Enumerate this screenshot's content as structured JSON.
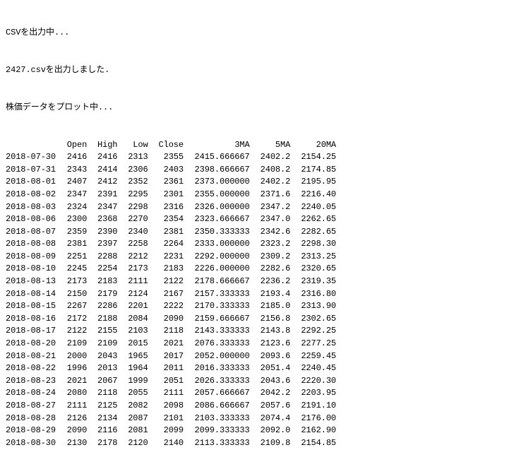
{
  "messages": [
    "CSVを出力中...",
    "2427.csvを出力しました.",
    "株価データをプロット中..."
  ],
  "table": {
    "columns": [
      "",
      "Open",
      "High",
      "Low",
      "Close",
      "3MA",
      "5MA",
      "20MA"
    ],
    "rows": [
      [
        "2018-07-30",
        "2416",
        "2416",
        "2313",
        "2355",
        "2415.666667",
        "2402.2",
        "2154.25"
      ],
      [
        "2018-07-31",
        "2343",
        "2414",
        "2306",
        "2403",
        "2398.666667",
        "2408.2",
        "2174.85"
      ],
      [
        "2018-08-01",
        "2407",
        "2412",
        "2352",
        "2361",
        "2373.000000",
        "2402.2",
        "2195.95"
      ],
      [
        "2018-08-02",
        "2347",
        "2391",
        "2295",
        "2301",
        "2355.000000",
        "2371.6",
        "2216.40"
      ],
      [
        "2018-08-03",
        "2324",
        "2347",
        "2298",
        "2316",
        "2326.000000",
        "2347.2",
        "2240.05"
      ],
      [
        "2018-08-06",
        "2300",
        "2368",
        "2270",
        "2354",
        "2323.666667",
        "2347.0",
        "2262.65"
      ],
      [
        "2018-08-07",
        "2359",
        "2390",
        "2340",
        "2381",
        "2350.333333",
        "2342.6",
        "2282.65"
      ],
      [
        "2018-08-08",
        "2381",
        "2397",
        "2258",
        "2264",
        "2333.000000",
        "2323.2",
        "2298.30"
      ],
      [
        "2018-08-09",
        "2251",
        "2288",
        "2212",
        "2231",
        "2292.000000",
        "2309.2",
        "2313.25"
      ],
      [
        "2018-08-10",
        "2245",
        "2254",
        "2173",
        "2183",
        "2226.000000",
        "2282.6",
        "2320.65"
      ],
      [
        "2018-08-13",
        "2173",
        "2183",
        "2111",
        "2122",
        "2178.666667",
        "2236.2",
        "2319.35"
      ],
      [
        "2018-08-14",
        "2150",
        "2179",
        "2124",
        "2167",
        "2157.333333",
        "2193.4",
        "2316.80"
      ],
      [
        "2018-08-15",
        "2267",
        "2286",
        "2201",
        "2222",
        "2170.333333",
        "2185.0",
        "2313.90"
      ],
      [
        "2018-08-16",
        "2172",
        "2188",
        "2084",
        "2090",
        "2159.666667",
        "2156.8",
        "2302.65"
      ],
      [
        "2018-08-17",
        "2122",
        "2155",
        "2103",
        "2118",
        "2143.333333",
        "2143.8",
        "2292.25"
      ],
      [
        "2018-08-20",
        "2109",
        "2109",
        "2015",
        "2021",
        "2076.333333",
        "2123.6",
        "2277.25"
      ],
      [
        "2018-08-21",
        "2000",
        "2043",
        "1965",
        "2017",
        "2052.000000",
        "2093.6",
        "2259.45"
      ],
      [
        "2018-08-22",
        "1996",
        "2013",
        "1964",
        "2011",
        "2016.333333",
        "2051.4",
        "2240.45"
      ],
      [
        "2018-08-23",
        "2021",
        "2067",
        "1999",
        "2051",
        "2026.333333",
        "2043.6",
        "2220.30"
      ],
      [
        "2018-08-24",
        "2080",
        "2118",
        "2055",
        "2111",
        "2057.666667",
        "2042.2",
        "2203.95"
      ],
      [
        "2018-08-27",
        "2111",
        "2125",
        "2082",
        "2098",
        "2086.666667",
        "2057.6",
        "2191.10"
      ],
      [
        "2018-08-28",
        "2126",
        "2134",
        "2087",
        "2101",
        "2103.333333",
        "2074.4",
        "2176.00"
      ],
      [
        "2018-08-29",
        "2090",
        "2116",
        "2081",
        "2099",
        "2099.333333",
        "2092.0",
        "2162.90"
      ],
      [
        "2018-08-30",
        "2130",
        "2178",
        "2120",
        "2140",
        "2113.333333",
        "2109.8",
        "2154.85"
      ]
    ]
  }
}
